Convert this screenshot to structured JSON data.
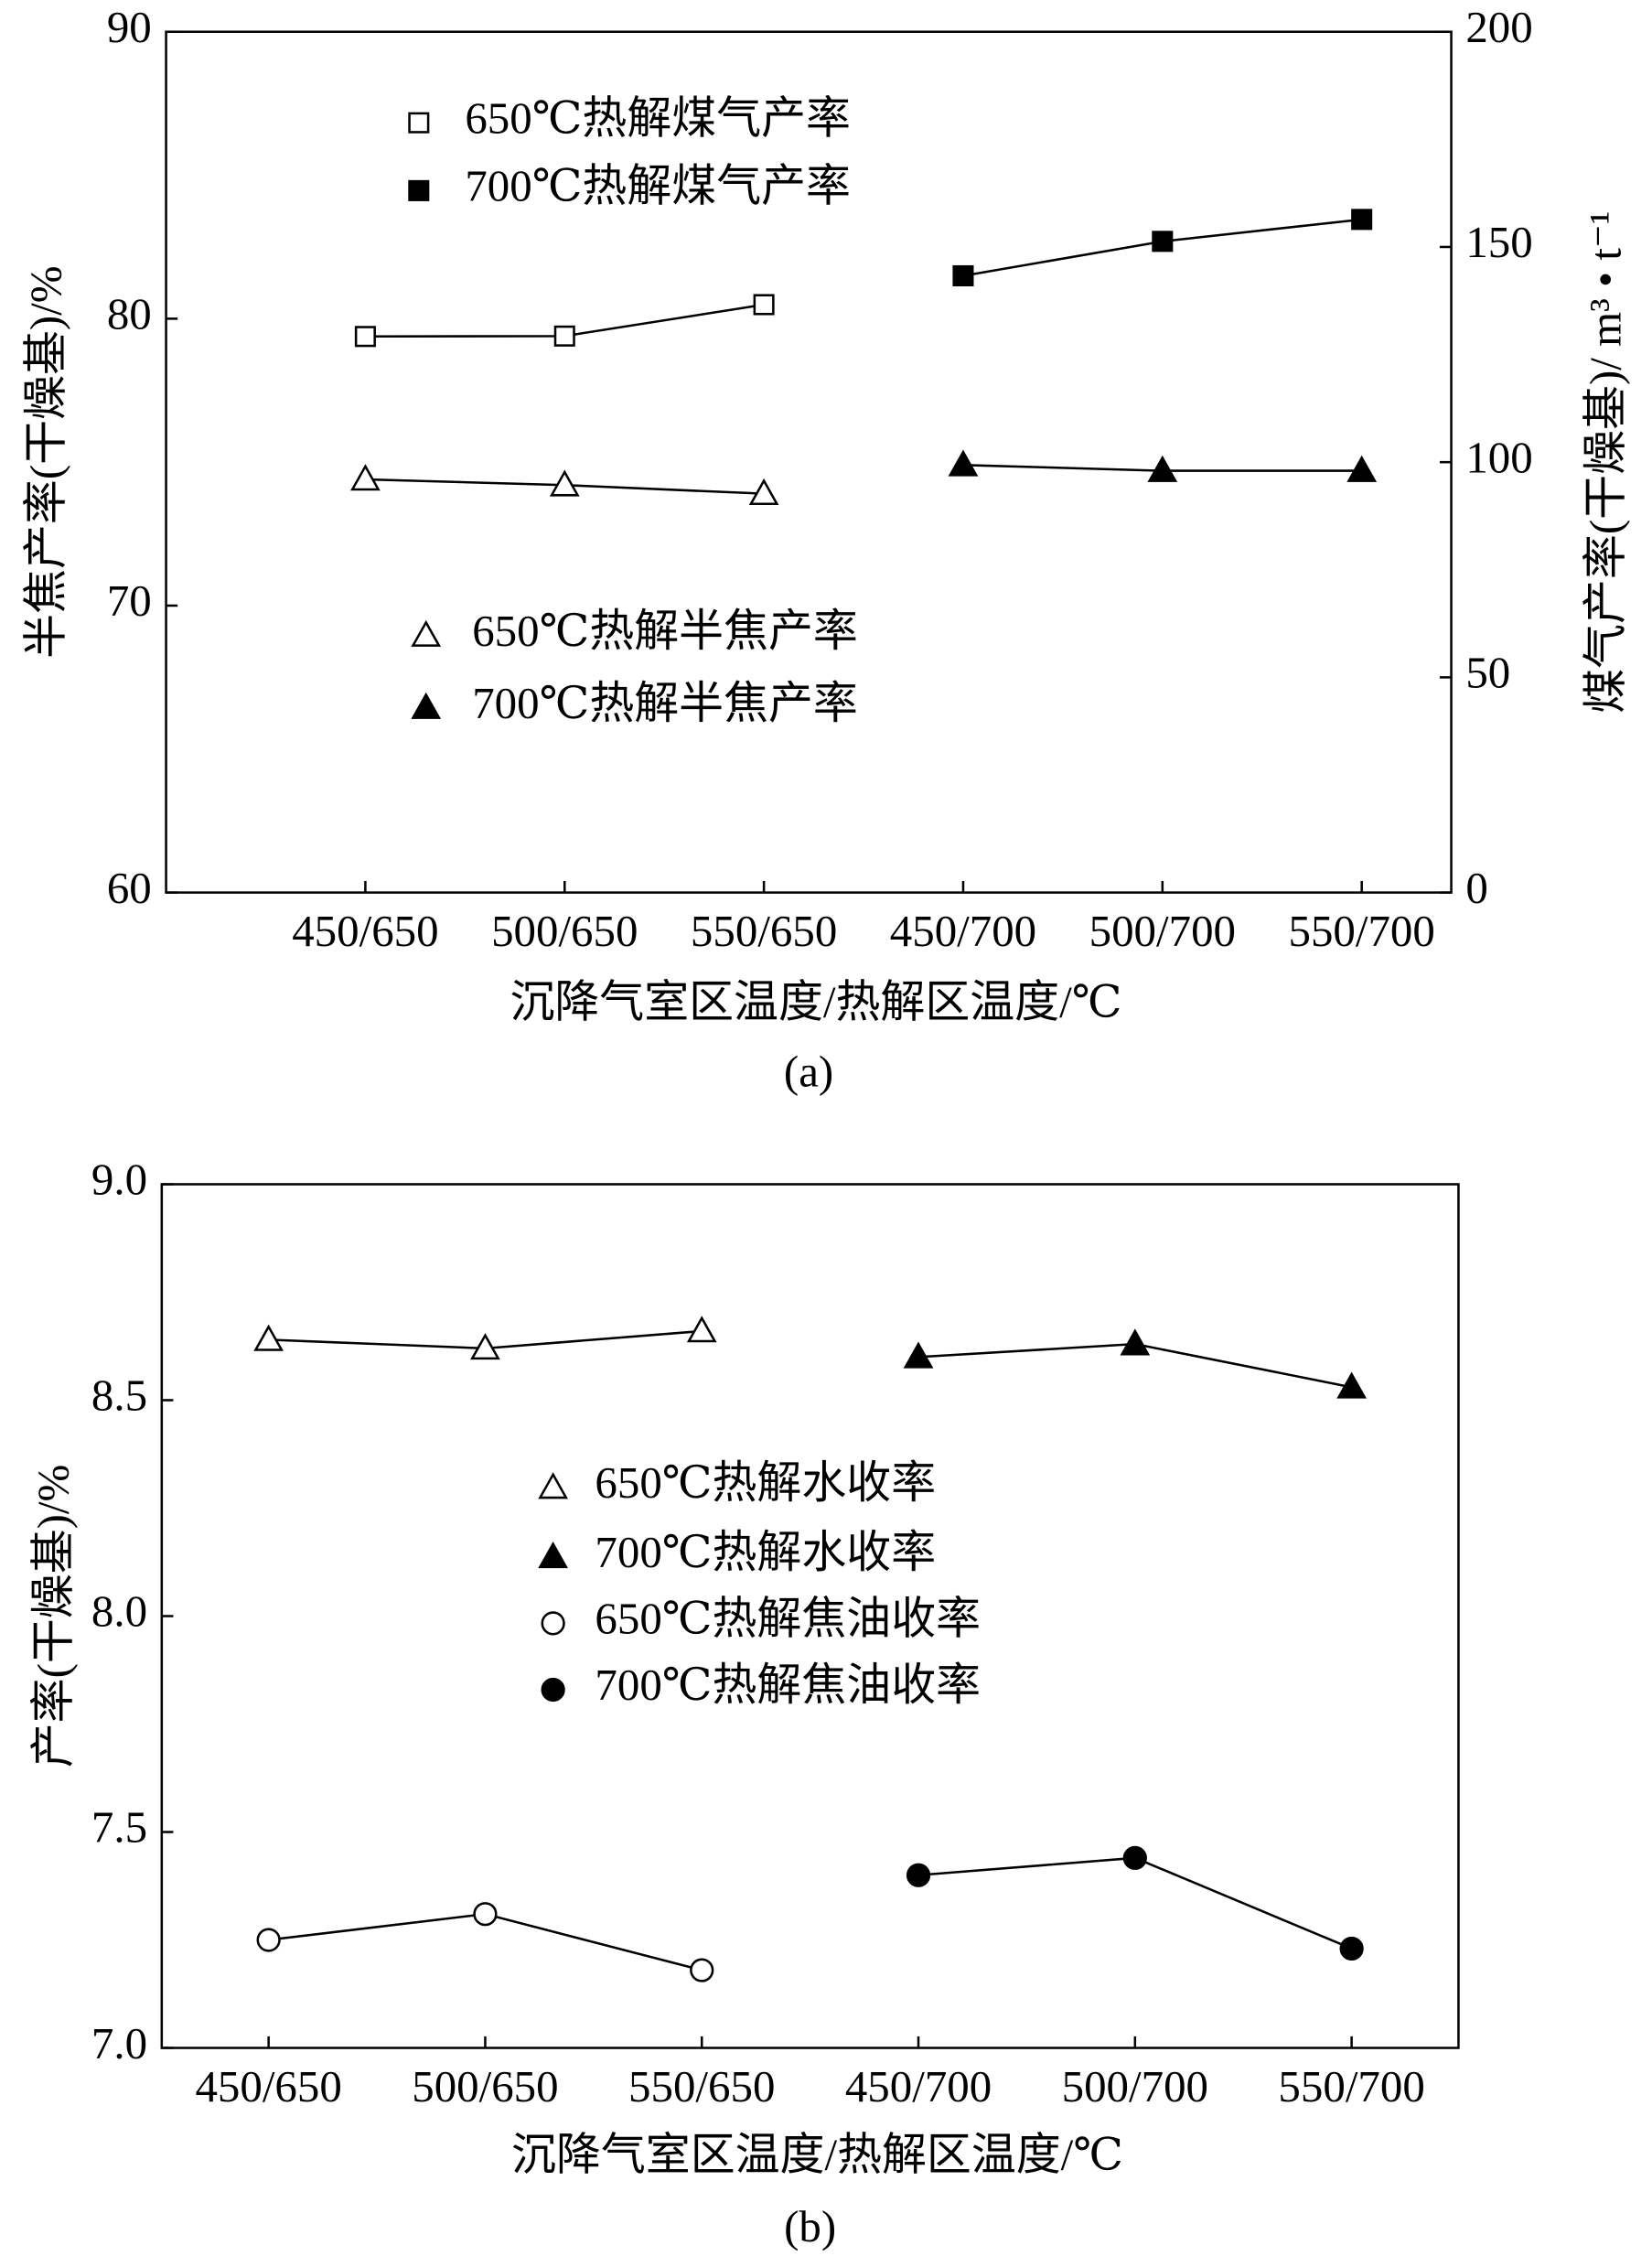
{
  "chart_data": [
    {
      "type": "line",
      "categories": [
        "450/650",
        "500/650",
        "550/650",
        "450/700",
        "500/700",
        "550/700"
      ],
      "x_label": "沉降气室区温度/热解区温度/℃",
      "y_label": "半焦产率(干燥基)/%",
      "y2_label": "煤气产率(干燥基)/ m³ • t⁻¹",
      "caption": "(a)",
      "ylim": [
        60,
        90
      ],
      "yticks": [
        60,
        70,
        80,
        90
      ],
      "y2lim": [
        0,
        200
      ],
      "y2ticks": [
        0,
        50,
        100,
        150,
        200
      ],
      "series": [
        {
          "name": "650℃热解煤气产率",
          "color": "#000000",
          "marker": "square",
          "filled": false,
          "axis": "y2",
          "values": [
            129.2,
            129.3,
            136.6,
            null,
            null,
            null
          ]
        },
        {
          "name": "700℃热解煤气产率",
          "color": "#000000",
          "marker": "square",
          "filled": true,
          "axis": "y2",
          "values": [
            null,
            null,
            null,
            143.3,
            151.3,
            156.4
          ]
        },
        {
          "name": "650℃热解半焦产率",
          "color": "#000000",
          "marker": "triangle",
          "filled": false,
          "values": [
            74.4,
            74.2,
            73.9,
            null,
            null,
            null
          ]
        },
        {
          "name": "700℃热解半焦产率",
          "color": "#000000",
          "marker": "triangle",
          "filled": true,
          "values": [
            null,
            null,
            null,
            74.9,
            74.7,
            74.7
          ]
        }
      ]
    },
    {
      "type": "line",
      "categories": [
        "450/650",
        "500/650",
        "550/650",
        "450/700",
        "500/700",
        "550/700"
      ],
      "x_label": "沉降气室区温度/热解区温度/℃",
      "y_label": "产率(干燥基)/%",
      "caption": "(b)",
      "ylim": [
        7,
        9
      ],
      "yticks": [
        {
          "value": 7,
          "label": "7.0"
        },
        7.5,
        {
          "value": 8,
          "label": "8.0"
        },
        8.5,
        {
          "value": 9,
          "label": "9.0"
        }
      ],
      "series": [
        {
          "name": "650℃热解水收率",
          "color": "#000000",
          "marker": "triangle",
          "filled": false,
          "values": [
            8.64,
            8.62,
            8.66,
            null,
            null,
            null
          ]
        },
        {
          "name": "700℃热解水收率",
          "color": "#000000",
          "marker": "triangle",
          "filled": true,
          "values": [
            null,
            null,
            null,
            8.6,
            8.63,
            8.53
          ]
        },
        {
          "name": "650℃热解焦油收率",
          "color": "#000000",
          "marker": "circle",
          "filled": false,
          "values": [
            7.25,
            7.31,
            7.18,
            null,
            null,
            null
          ]
        },
        {
          "name": "700℃热解焦油收率",
          "color": "#000000",
          "marker": "circle",
          "filled": true,
          "values": [
            null,
            null,
            null,
            7.4,
            7.44,
            7.23
          ]
        }
      ]
    }
  ]
}
